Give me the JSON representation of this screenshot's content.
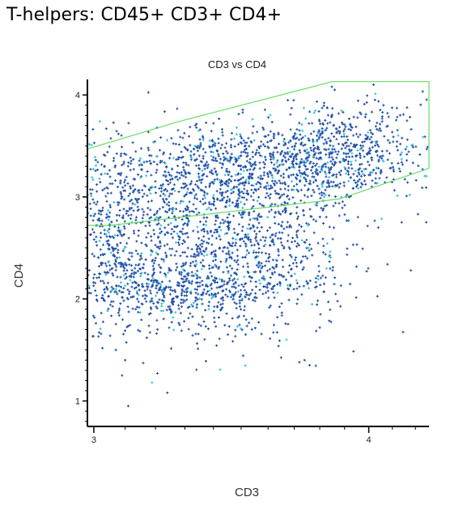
{
  "page": {
    "heading": "T-helpers: CD45+ CD3+ CD4+"
  },
  "chart_data": {
    "type": "scatter",
    "title": "CD3 vs CD4",
    "xlabel": "CD3",
    "ylabel": "CD4",
    "xscale": "log",
    "xlim": [
      2.98,
      4.26
    ],
    "ylim": [
      0.75,
      4.12
    ],
    "x_ticks": [
      3,
      4
    ],
    "y_ticks": [
      1,
      2,
      3,
      4
    ],
    "point_color": "#1f4fa8",
    "dense_color": "#2ec4d6",
    "gate_color": "#66dd66",
    "gate_polygon": [
      [
        2.98,
        3.47
      ],
      [
        3.28,
        3.74
      ],
      [
        3.85,
        4.13
      ],
      [
        4.26,
        4.13
      ],
      [
        4.26,
        3.28
      ],
      [
        3.88,
        2.98
      ],
      [
        3.05,
        2.72
      ],
      [
        2.98,
        2.72
      ]
    ],
    "clusters": [
      {
        "cx": 3.3,
        "cy": 2.8,
        "sx": 0.22,
        "sy": 0.42,
        "n": 900
      },
      {
        "cx": 3.55,
        "cy": 3.25,
        "sx": 0.3,
        "sy": 0.22,
        "n": 700
      },
      {
        "cx": 3.25,
        "cy": 2.1,
        "sx": 0.2,
        "sy": 0.18,
        "n": 500
      },
      {
        "cx": 3.85,
        "cy": 3.45,
        "sx": 0.2,
        "sy": 0.22,
        "n": 500
      },
      {
        "cx": 3.6,
        "cy": 2.4,
        "sx": 0.18,
        "sy": 0.3,
        "n": 350
      },
      {
        "cx": 3.05,
        "cy": 2.5,
        "sx": 0.05,
        "sy": 0.45,
        "n": 200
      },
      {
        "cx": 3.35,
        "cy": 1.7,
        "sx": 0.3,
        "sy": 0.25,
        "n": 80
      },
      {
        "cx": 4.05,
        "cy": 3.7,
        "sx": 0.12,
        "sy": 0.2,
        "n": 40
      }
    ],
    "outliers": [
      [
        3.07,
        1.5
      ],
      [
        3.09,
        1.25
      ],
      [
        3.11,
        0.95
      ],
      [
        3.13,
        0.72
      ],
      [
        3.24,
        1.08
      ],
      [
        3.31,
        0.68
      ],
      [
        3.1,
        1.4
      ],
      [
        3.74,
        1.4
      ],
      [
        3.72,
        1.38
      ],
      [
        3.76,
        1.35
      ],
      [
        3.8,
        1.72
      ],
      [
        3.67,
        1.6
      ],
      [
        4.18,
        2.28
      ],
      [
        4.04,
        2.7
      ],
      [
        4.02,
        4.1
      ]
    ]
  }
}
